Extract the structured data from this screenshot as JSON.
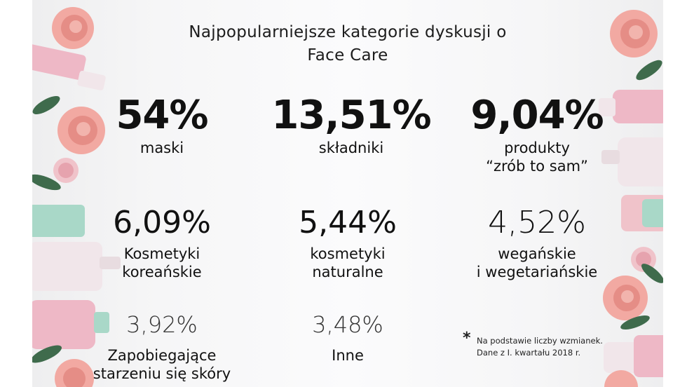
{
  "title": [
    "Najpopularniejsze kategorie dyskusji o",
    "Face Care"
  ],
  "colors": {
    "rose": "#f2a9a2",
    "rose_dark": "#e58d86",
    "leaf": "#3f6b4c",
    "mint": "#a9d8c8",
    "pink_bottle": "#eeb8c6",
    "white_bottle": "#f1e6ea"
  },
  "chart_data": {
    "type": "table",
    "title": "Najpopularniejsze kategorie dyskusji o Face Care",
    "unit": "%",
    "items": [
      {
        "value": "54%",
        "label": [
          "maski"
        ]
      },
      {
        "value": "13,51%",
        "label": [
          "składniki"
        ]
      },
      {
        "value": "9,04%",
        "label": [
          "produkty",
          "“zrób to sam”"
        ]
      },
      {
        "value": "6,09%",
        "label": [
          "Kosmetyki",
          "koreańskie"
        ]
      },
      {
        "value": "5,44%",
        "label": [
          "kosmetyki",
          "naturalne"
        ]
      },
      {
        "value": "4,52%",
        "label": [
          "wegańskie",
          "i wegetariańskie"
        ]
      },
      {
        "value": "3,92%",
        "label": [
          "Zapobiegające",
          "starzeniu się skóry"
        ]
      },
      {
        "value": "3,48%",
        "label": [
          "Inne"
        ]
      }
    ]
  },
  "footnote": {
    "marker": "*",
    "lines": [
      "Na podstawie liczby wzmianek.",
      "Dane z I. kwartału 2018 r."
    ]
  }
}
